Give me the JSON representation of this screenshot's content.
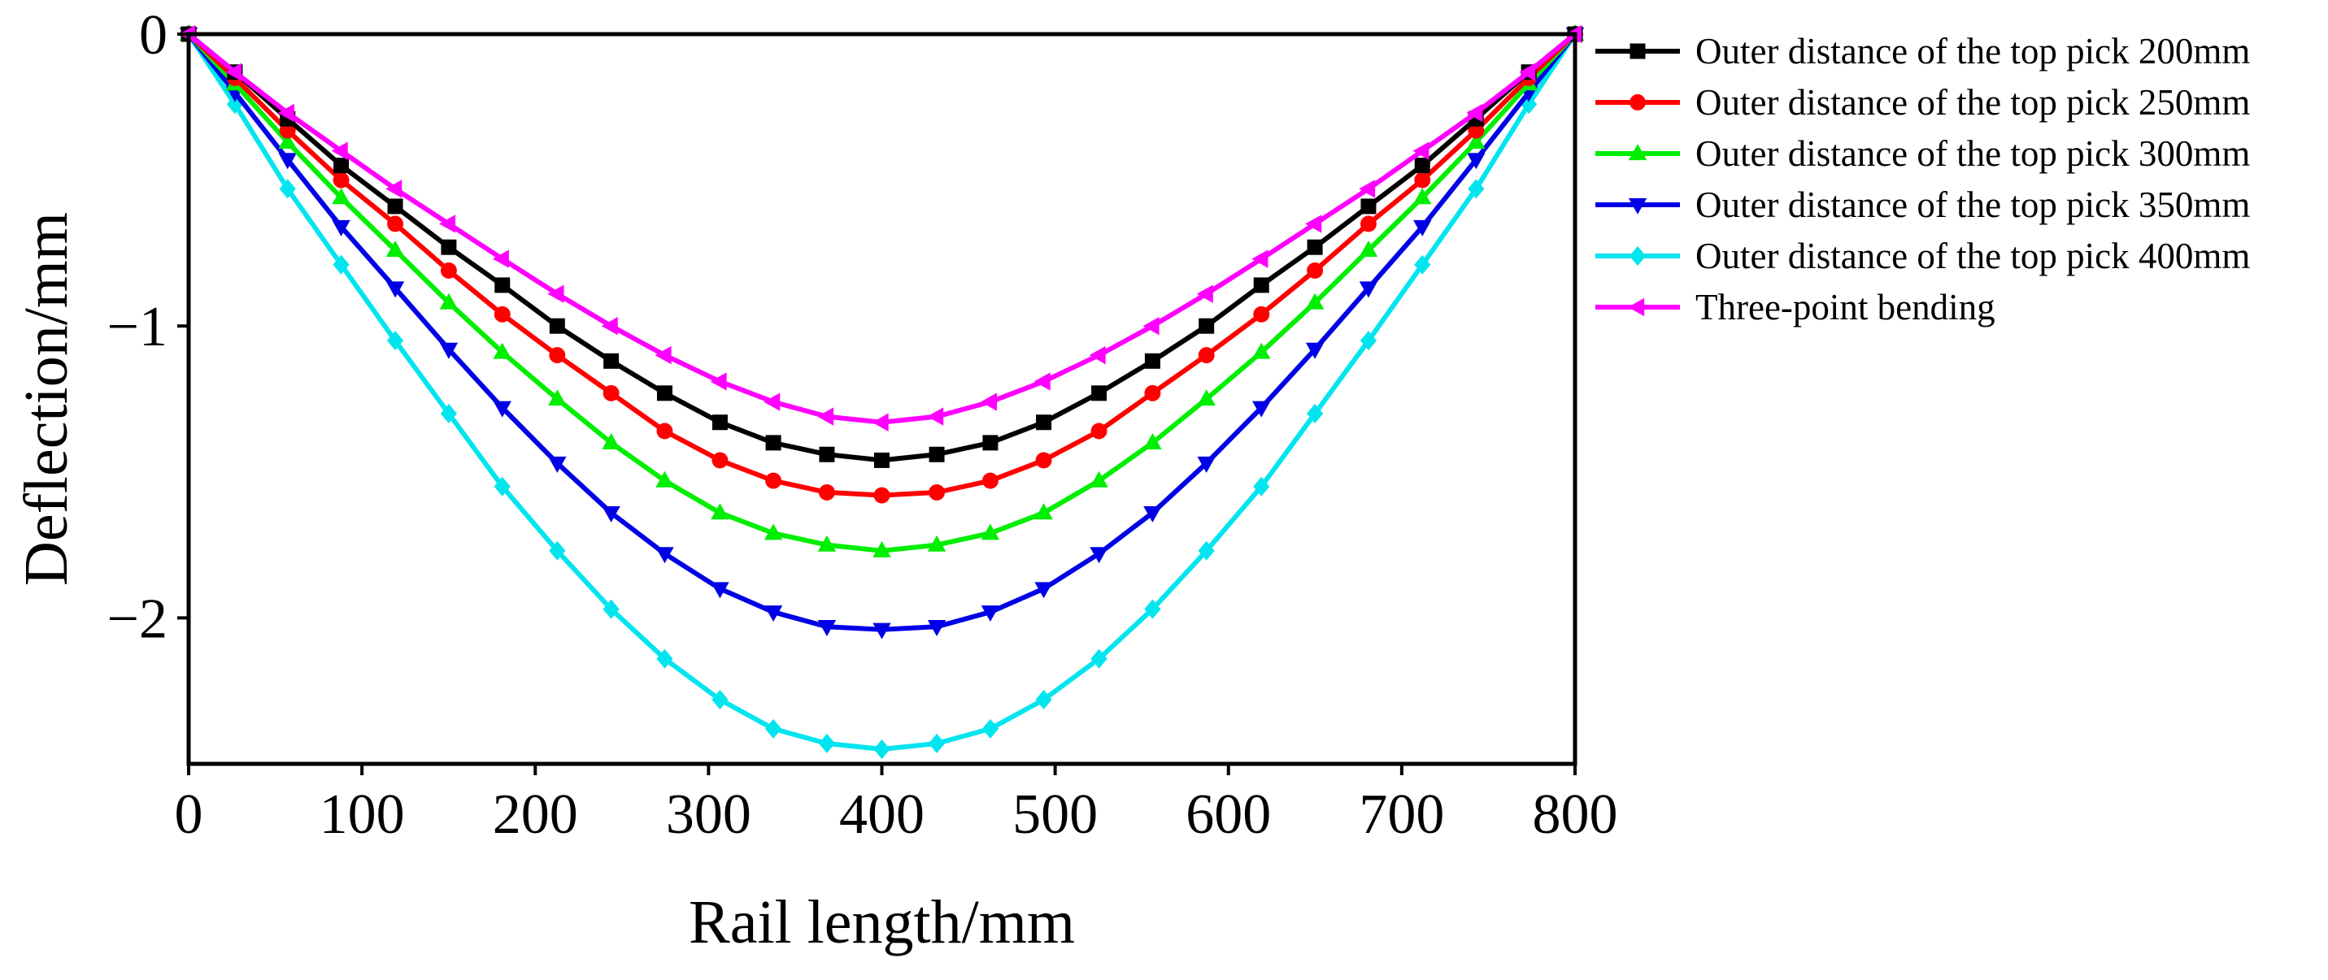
{
  "chart_data": {
    "type": "line",
    "title": "",
    "xlabel": "Rail length/mm",
    "ylabel": "Deflection/mm",
    "xlim": [
      0,
      800
    ],
    "ylim": [
      -2.5,
      0
    ],
    "x_ticks": [
      0,
      100,
      200,
      300,
      400,
      500,
      600,
      700,
      800
    ],
    "x_tick_labels": [
      "0",
      "100",
      "200",
      "300",
      "400",
      "500",
      "600",
      "700",
      "800"
    ],
    "y_ticks": [
      0,
      -1,
      -2
    ],
    "y_tick_labels": [
      "0",
      "−1",
      "−2"
    ],
    "grid": false,
    "legend_position": "right",
    "x": [
      0,
      26.7,
      57.1,
      88.0,
      119.2,
      150.1,
      181.0,
      212.7,
      243.8,
      274.7,
      306.6,
      337.4,
      368.3,
      400,
      431.7,
      462.6,
      493.4,
      525.3,
      556.2,
      587.3,
      619.0,
      649.9,
      680.8,
      711.9,
      742.9,
      773.3,
      800
    ],
    "series": [
      {
        "name": "Outer distance of the top pick 200mm",
        "color": "#000000",
        "marker": "square",
        "values": [
          0,
          -0.13,
          -0.29,
          -0.45,
          -0.59,
          -0.73,
          -0.86,
          -1.0,
          -1.12,
          -1.23,
          -1.33,
          -1.4,
          -1.44,
          -1.46,
          -1.44,
          -1.4,
          -1.33,
          -1.23,
          -1.12,
          -1.0,
          -0.86,
          -0.73,
          -0.59,
          -0.45,
          -0.29,
          -0.13,
          0
        ]
      },
      {
        "name": "Outer distance of the top pick 250mm",
        "color": "#ff0000",
        "marker": "circle",
        "values": [
          0,
          -0.15,
          -0.33,
          -0.5,
          -0.65,
          -0.81,
          -0.96,
          -1.1,
          -1.23,
          -1.36,
          -1.46,
          -1.53,
          -1.57,
          -1.58,
          -1.57,
          -1.53,
          -1.46,
          -1.36,
          -1.23,
          -1.1,
          -0.96,
          -0.81,
          -0.65,
          -0.5,
          -0.33,
          -0.15,
          0
        ]
      },
      {
        "name": "Outer distance of the top pick 300mm",
        "color": "#00ee00",
        "marker": "triangle-up",
        "values": [
          0,
          -0.17,
          -0.37,
          -0.56,
          -0.74,
          -0.92,
          -1.09,
          -1.25,
          -1.4,
          -1.53,
          -1.64,
          -1.71,
          -1.75,
          -1.77,
          -1.75,
          -1.71,
          -1.64,
          -1.53,
          -1.4,
          -1.25,
          -1.09,
          -0.92,
          -0.74,
          -0.56,
          -0.37,
          -0.17,
          0
        ]
      },
      {
        "name": "Outer distance of the top pick 350mm",
        "color": "#0000e6",
        "marker": "triangle-down",
        "values": [
          0,
          -0.2,
          -0.43,
          -0.66,
          -0.87,
          -1.08,
          -1.28,
          -1.47,
          -1.64,
          -1.78,
          -1.9,
          -1.98,
          -2.03,
          -2.04,
          -2.03,
          -1.98,
          -1.9,
          -1.78,
          -1.64,
          -1.47,
          -1.28,
          -1.08,
          -0.87,
          -0.66,
          -0.43,
          -0.2,
          0
        ]
      },
      {
        "name": "Outer distance of the top pick 400mm",
        "color": "#00e5ee",
        "marker": "diamond",
        "values": [
          0,
          -0.24,
          -0.53,
          -0.79,
          -1.05,
          -1.3,
          -1.55,
          -1.77,
          -1.97,
          -2.14,
          -2.28,
          -2.38,
          -2.43,
          -2.45,
          -2.43,
          -2.38,
          -2.28,
          -2.14,
          -1.97,
          -1.77,
          -1.55,
          -1.3,
          -1.05,
          -0.79,
          -0.53,
          -0.24,
          0
        ]
      },
      {
        "name": "Three-point bending",
        "color": "#ff00ff",
        "marker": "triangle-left",
        "values": [
          0,
          -0.13,
          -0.27,
          -0.4,
          -0.53,
          -0.65,
          -0.77,
          -0.89,
          -1.0,
          -1.1,
          -1.19,
          -1.26,
          -1.31,
          -1.33,
          -1.31,
          -1.26,
          -1.19,
          -1.1,
          -1.0,
          -0.89,
          -0.77,
          -0.65,
          -0.53,
          -0.4,
          -0.27,
          -0.13,
          0
        ]
      }
    ]
  }
}
